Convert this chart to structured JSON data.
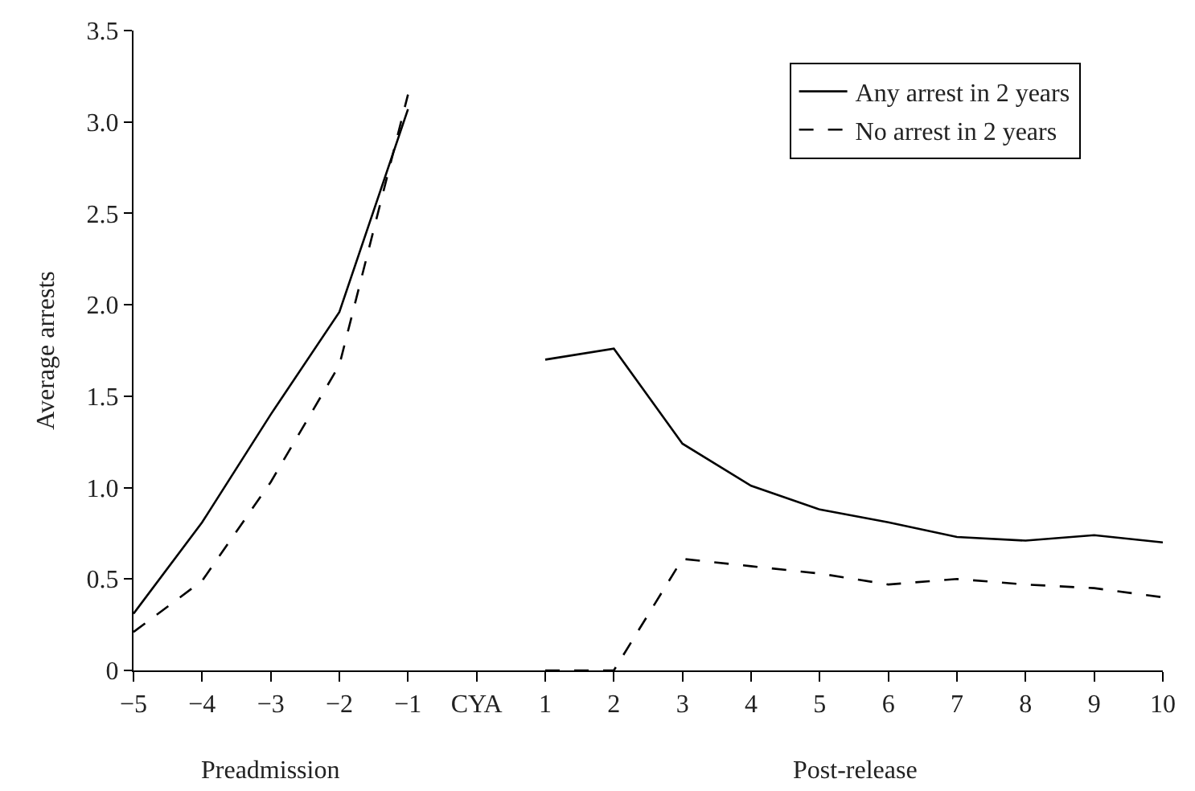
{
  "chart_data": {
    "type": "line",
    "ylabel": "Average arrests",
    "categories": [
      "−5",
      "−4",
      "−3",
      "−2",
      "−1",
      "CYA",
      "1",
      "2",
      "3",
      "4",
      "5",
      "6",
      "7",
      "8",
      "9",
      "10"
    ],
    "series": [
      {
        "name": "Any arrest in 2 years",
        "color": "#000000",
        "line_style": "solid",
        "values": [
          0.31,
          0.81,
          1.4,
          1.96,
          3.07,
          null,
          1.7,
          1.76,
          1.24,
          1.01,
          0.88,
          0.81,
          0.73,
          0.71,
          0.74,
          0.7
        ]
      },
      {
        "name": "No arrest in 2 years",
        "color": "#000000",
        "line_style": "dashed",
        "values": [
          0.21,
          0.49,
          1.03,
          1.67,
          3.15,
          null,
          0,
          0,
          0.61,
          0.57,
          0.53,
          0.47,
          0.5,
          0.47,
          0.45,
          0.4
        ]
      }
    ],
    "ylim": [
      0,
      3.5
    ],
    "yticks": [
      0,
      0.5,
      {
        "value": 1,
        "label": "1.0"
      },
      1.5,
      {
        "value": 2,
        "label": "2.0"
      },
      2.5,
      {
        "value": 3,
        "label": "3.0"
      },
      3.5
    ],
    "annotations": [
      "Preadmission",
      "Post-release"
    ],
    "legend": "top right"
  }
}
